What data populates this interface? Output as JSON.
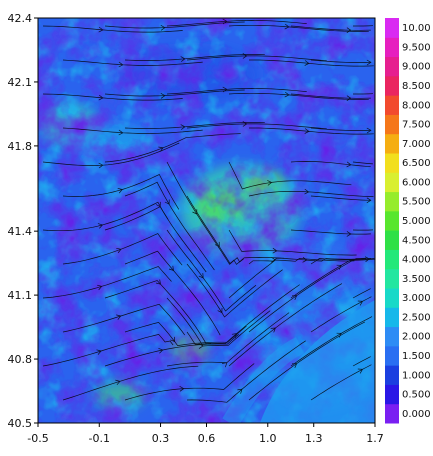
{
  "chart_data": {
    "type": "heatmap",
    "title": "",
    "xlabel": "",
    "ylabel": "",
    "xlim": [
      -0.5,
      1.7
    ],
    "ylim": [
      40.5,
      42.4
    ],
    "x_ticks": [
      "-0.5",
      "-0.1",
      "0.3",
      "0.6",
      "1.0",
      "1.3",
      "1.7"
    ],
    "y_ticks": [
      "42.4",
      "42.1",
      "41.8",
      "41.4",
      "41.1",
      "40.8",
      "40.5"
    ],
    "x_tick_values": [
      -0.5,
      -0.1,
      0.3,
      0.6,
      1.0,
      1.3,
      1.7
    ],
    "y_tick_values": [
      42.4,
      42.1,
      41.8,
      41.4,
      41.1,
      40.8,
      40.5
    ],
    "overlay": "streamlines",
    "grid": false,
    "legend": "right colorbar",
    "colorbar": {
      "labels": [
        "0.000",
        "0.500",
        "1.000",
        "1.500",
        "2.000",
        "2.500",
        "3.000",
        "3.500",
        "4.000",
        "4.500",
        "5.000",
        "5.500",
        "6.000",
        "6.500",
        "7.000",
        "7.500",
        "8.000",
        "8.500",
        "9.000",
        "9.500",
        "10.00"
      ],
      "colors": [
        "#7a1ff2",
        "#2a17e6",
        "#1b3fe0",
        "#2a6ff2",
        "#2e8cf5",
        "#16b8ea",
        "#18d9c8",
        "#22e6a0",
        "#22e87a",
        "#2fe046",
        "#58e62e",
        "#96ec2c",
        "#d9ef30",
        "#f2df1e",
        "#f5ae12",
        "#f5771a",
        "#f24a2e",
        "#ea2560",
        "#e61f8f",
        "#e61fbf",
        "#d92af2"
      ],
      "bottom_color": "#7a1ff2",
      "top_color": "#d92af2"
    }
  }
}
